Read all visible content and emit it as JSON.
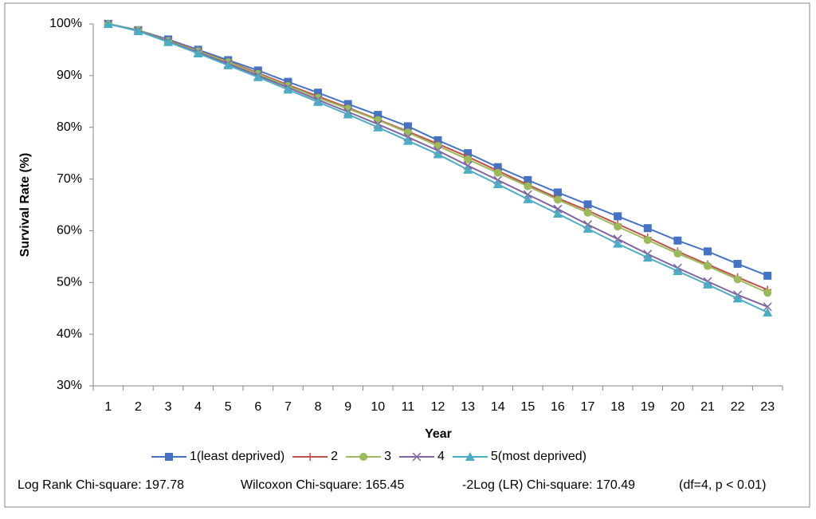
{
  "chart_data": {
    "type": "line",
    "x_label": "Year",
    "y_label": "Survival Rate (%)",
    "categories": [
      "1",
      "2",
      "3",
      "4",
      "5",
      "6",
      "7",
      "8",
      "9",
      "10",
      "11",
      "12",
      "13",
      "14",
      "15",
      "16",
      "17",
      "18",
      "19",
      "20",
      "21",
      "22",
      "23"
    ],
    "ylim": [
      30,
      100
    ],
    "yticks": [
      {
        "value": 30,
        "label": "30%"
      },
      {
        "value": 40,
        "label": "40%"
      },
      {
        "value": 50,
        "label": "50%"
      },
      {
        "value": 60,
        "label": "60%"
      },
      {
        "value": 70,
        "label": "70%"
      },
      {
        "value": 80,
        "label": "80%"
      },
      {
        "value": 90,
        "label": "90%"
      },
      {
        "value": 100,
        "label": "100%"
      }
    ],
    "grid": false,
    "series": [
      {
        "name": "1(least deprived)",
        "color": "#4472c4",
        "marker": "square",
        "values": [
          100,
          98.8,
          97,
          95,
          93,
          91,
          88.8,
          86.7,
          84.5,
          82.4,
          80.2,
          77.5,
          75,
          72.3,
          69.8,
          67.4,
          65.1,
          62.8,
          60.5,
          58.1,
          56,
          53.6,
          51.3
        ]
      },
      {
        "name": "2",
        "color": "#c0504d",
        "marker": "plus",
        "values": [
          100,
          98.8,
          96.8,
          94.8,
          92.7,
          90.5,
          88.2,
          86,
          83.8,
          81.5,
          79.2,
          76.8,
          74.3,
          71.6,
          68.9,
          66.3,
          63.9,
          61.3,
          58.7,
          56,
          53.5,
          51,
          48.6
        ]
      },
      {
        "name": "3",
        "color": "#9bbb59",
        "marker": "circle",
        "values": [
          100,
          98.8,
          96.7,
          94.7,
          92.6,
          90.3,
          88,
          85.7,
          83.6,
          81.4,
          79,
          76.4,
          73.8,
          71.2,
          68.6,
          66,
          63.5,
          60.8,
          58.2,
          55.6,
          53.2,
          50.6,
          48
        ]
      },
      {
        "name": "4",
        "color": "#8064a2",
        "marker": "cross",
        "values": [
          100,
          98.7,
          96.6,
          94.5,
          92.3,
          90,
          87.7,
          85.3,
          83,
          80.6,
          78.1,
          75.5,
          72.6,
          69.8,
          67,
          64.2,
          61.2,
          58.4,
          55.5,
          52.8,
          50.2,
          47.6,
          45.3
        ]
      },
      {
        "name": "5(most deprived)",
        "color": "#4bacc6",
        "marker": "triangle",
        "values": [
          100,
          98.6,
          96.5,
          94.3,
          92,
          89.7,
          87.3,
          84.9,
          82.5,
          80,
          77.4,
          74.8,
          71.8,
          69,
          66.1,
          63.3,
          60.4,
          57.5,
          54.8,
          52.2,
          49.6,
          46.9,
          44.2
        ]
      }
    ],
    "annotations": [
      "Log Rank Chi-square: 197.78",
      "Wilcoxon Chi-square: 165.45",
      "-2Log (LR) Chi-square: 170.49",
      "(df=4, p < 0.01)"
    ]
  }
}
